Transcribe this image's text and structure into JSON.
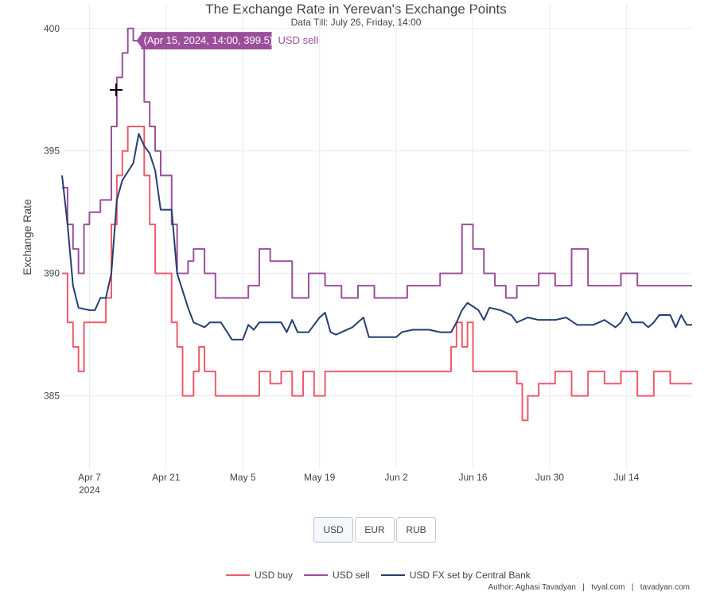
{
  "chart_data": {
    "type": "line",
    "title": "The Exchange Rate in Yerevan's Exchange Points",
    "subtitle": "Data Till: July 26, Friday, 14:00",
    "ylabel": "Exchange Rate",
    "xlabel": "",
    "ylim": [
      382.0,
      401.0
    ],
    "xlim": [
      "2024-04-02",
      "2024-07-26"
    ],
    "grid": true,
    "x_ticks": [
      {
        "date": "2024-04-07",
        "label": "Apr 7",
        "sub": "2024"
      },
      {
        "date": "2024-04-21",
        "label": "Apr 21",
        "sub": ""
      },
      {
        "date": "2024-05-05",
        "label": "May 5",
        "sub": ""
      },
      {
        "date": "2024-05-19",
        "label": "May 19",
        "sub": ""
      },
      {
        "date": "2024-06-02",
        "label": "Jun 2",
        "sub": ""
      },
      {
        "date": "2024-06-16",
        "label": "Jun 16",
        "sub": ""
      },
      {
        "date": "2024-06-30",
        "label": "Jun 30",
        "sub": ""
      },
      {
        "date": "2024-07-14",
        "label": "Jul 14",
        "sub": ""
      }
    ],
    "y_ticks": [
      385,
      390,
      395,
      400
    ],
    "series": [
      {
        "name": "USD buy",
        "color": "#ef5a6b",
        "points": [
          [
            "2024-04-02",
            390.0
          ],
          [
            "2024-04-03",
            388.0
          ],
          [
            "2024-04-04",
            387.0
          ],
          [
            "2024-04-05",
            386.0
          ],
          [
            "2024-04-06",
            388.0
          ],
          [
            "2024-04-07",
            388.0
          ],
          [
            "2024-04-08",
            388.0
          ],
          [
            "2024-04-09",
            388.0
          ],
          [
            "2024-04-10",
            389.0
          ],
          [
            "2024-04-11",
            392.0
          ],
          [
            "2024-04-12",
            394.0
          ],
          [
            "2024-04-13",
            395.0
          ],
          [
            "2024-04-14",
            396.0
          ],
          [
            "2024-04-15",
            396.0
          ],
          [
            "2024-04-16",
            396.0
          ],
          [
            "2024-04-17",
            394.0
          ],
          [
            "2024-04-18",
            392.0
          ],
          [
            "2024-04-19",
            390.0
          ],
          [
            "2024-04-20",
            390.0
          ],
          [
            "2024-04-21",
            390.0
          ],
          [
            "2024-04-22",
            388.0
          ],
          [
            "2024-04-23",
            387.0
          ],
          [
            "2024-04-24",
            385.0
          ],
          [
            "2024-04-25",
            385.0
          ],
          [
            "2024-04-26",
            386.0
          ],
          [
            "2024-04-27",
            387.0
          ],
          [
            "2024-04-28",
            386.0
          ],
          [
            "2024-04-29",
            386.0
          ],
          [
            "2024-04-30",
            385.0
          ],
          [
            "2024-05-02",
            385.0
          ],
          [
            "2024-05-04",
            385.0
          ],
          [
            "2024-05-06",
            385.0
          ],
          [
            "2024-05-08",
            386.0
          ],
          [
            "2024-05-10",
            385.5
          ],
          [
            "2024-05-12",
            386.0
          ],
          [
            "2024-05-14",
            385.0
          ],
          [
            "2024-05-16",
            386.0
          ],
          [
            "2024-05-18",
            385.0
          ],
          [
            "2024-05-20",
            386.0
          ],
          [
            "2024-05-25",
            386.0
          ],
          [
            "2024-05-30",
            386.0
          ],
          [
            "2024-06-05",
            386.0
          ],
          [
            "2024-06-10",
            386.0
          ],
          [
            "2024-06-12",
            387.0
          ],
          [
            "2024-06-13",
            388.0
          ],
          [
            "2024-06-14",
            387.0
          ],
          [
            "2024-06-15",
            388.0
          ],
          [
            "2024-06-16",
            386.0
          ],
          [
            "2024-06-18",
            386.0
          ],
          [
            "2024-06-20",
            386.0
          ],
          [
            "2024-06-22",
            386.0
          ],
          [
            "2024-06-24",
            385.5
          ],
          [
            "2024-06-25",
            384.0
          ],
          [
            "2024-06-26",
            385.0
          ],
          [
            "2024-06-28",
            385.5
          ],
          [
            "2024-07-01",
            386.0
          ],
          [
            "2024-07-04",
            385.0
          ],
          [
            "2024-07-07",
            386.0
          ],
          [
            "2024-07-10",
            385.5
          ],
          [
            "2024-07-13",
            386.0
          ],
          [
            "2024-07-16",
            385.0
          ],
          [
            "2024-07-19",
            386.0
          ],
          [
            "2024-07-22",
            385.5
          ],
          [
            "2024-07-26",
            385.5
          ]
        ]
      },
      {
        "name": "USD sell",
        "color": "#9b4f9b",
        "points": [
          [
            "2024-04-02",
            393.5
          ],
          [
            "2024-04-03",
            392.0
          ],
          [
            "2024-04-04",
            391.0
          ],
          [
            "2024-04-05",
            390.0
          ],
          [
            "2024-04-06",
            392.0
          ],
          [
            "2024-04-07",
            392.5
          ],
          [
            "2024-04-08",
            392.5
          ],
          [
            "2024-04-09",
            393.0
          ],
          [
            "2024-04-10",
            393.0
          ],
          [
            "2024-04-11",
            396.0
          ],
          [
            "2024-04-12",
            398.0
          ],
          [
            "2024-04-13",
            399.0
          ],
          [
            "2024-04-14",
            400.0
          ],
          [
            "2024-04-15",
            399.5
          ],
          [
            "2024-04-16",
            399.5
          ],
          [
            "2024-04-17",
            397.0
          ],
          [
            "2024-04-18",
            396.0
          ],
          [
            "2024-04-19",
            395.0
          ],
          [
            "2024-04-20",
            394.0
          ],
          [
            "2024-04-21",
            394.0
          ],
          [
            "2024-04-22",
            392.0
          ],
          [
            "2024-04-23",
            390.0
          ],
          [
            "2024-04-24",
            390.0
          ],
          [
            "2024-04-25",
            390.5
          ],
          [
            "2024-04-26",
            391.0
          ],
          [
            "2024-04-28",
            390.0
          ],
          [
            "2024-04-30",
            389.0
          ],
          [
            "2024-05-03",
            389.0
          ],
          [
            "2024-05-06",
            389.5
          ],
          [
            "2024-05-08",
            391.0
          ],
          [
            "2024-05-10",
            390.5
          ],
          [
            "2024-05-12",
            390.5
          ],
          [
            "2024-05-14",
            389.0
          ],
          [
            "2024-05-17",
            390.0
          ],
          [
            "2024-05-20",
            389.5
          ],
          [
            "2024-05-23",
            389.0
          ],
          [
            "2024-05-26",
            389.5
          ],
          [
            "2024-05-29",
            389.0
          ],
          [
            "2024-06-01",
            389.0
          ],
          [
            "2024-06-04",
            389.5
          ],
          [
            "2024-06-07",
            389.5
          ],
          [
            "2024-06-10",
            390.0
          ],
          [
            "2024-06-12",
            390.0
          ],
          [
            "2024-06-14",
            392.0
          ],
          [
            "2024-06-16",
            391.0
          ],
          [
            "2024-06-18",
            390.0
          ],
          [
            "2024-06-20",
            389.5
          ],
          [
            "2024-06-22",
            389.0
          ],
          [
            "2024-06-24",
            389.5
          ],
          [
            "2024-06-26",
            389.5
          ],
          [
            "2024-06-28",
            390.0
          ],
          [
            "2024-07-01",
            389.5
          ],
          [
            "2024-07-04",
            391.0
          ],
          [
            "2024-07-07",
            389.5
          ],
          [
            "2024-07-10",
            389.5
          ],
          [
            "2024-07-13",
            390.0
          ],
          [
            "2024-07-16",
            389.5
          ],
          [
            "2024-07-19",
            389.5
          ],
          [
            "2024-07-22",
            389.5
          ],
          [
            "2024-07-26",
            389.5
          ]
        ]
      },
      {
        "name": "USD FX set by Central Bank",
        "color": "#253f72",
        "points": [
          [
            "2024-04-02",
            394.0
          ],
          [
            "2024-04-03",
            392.0
          ],
          [
            "2024-04-04",
            389.5
          ],
          [
            "2024-04-05",
            388.6
          ],
          [
            "2024-04-07",
            388.5
          ],
          [
            "2024-04-08",
            388.5
          ],
          [
            "2024-04-09",
            389.0
          ],
          [
            "2024-04-10",
            389.0
          ],
          [
            "2024-04-11",
            390.0
          ],
          [
            "2024-04-12",
            393.0
          ],
          [
            "2024-04-13",
            393.8
          ],
          [
            "2024-04-15",
            394.5
          ],
          [
            "2024-04-16",
            395.7
          ],
          [
            "2024-04-17",
            395.2
          ],
          [
            "2024-04-18",
            394.9
          ],
          [
            "2024-04-19",
            394.2
          ],
          [
            "2024-04-20",
            392.6
          ],
          [
            "2024-04-22",
            392.6
          ],
          [
            "2024-04-23",
            390.0
          ],
          [
            "2024-04-25",
            388.6
          ],
          [
            "2024-04-26",
            388.0
          ],
          [
            "2024-04-28",
            387.8
          ],
          [
            "2024-04-29",
            388.0
          ],
          [
            "2024-05-01",
            388.0
          ],
          [
            "2024-05-03",
            387.3
          ],
          [
            "2024-05-05",
            387.3
          ],
          [
            "2024-05-06",
            387.9
          ],
          [
            "2024-05-07",
            387.7
          ],
          [
            "2024-05-08",
            388.0
          ],
          [
            "2024-05-10",
            388.0
          ],
          [
            "2024-05-12",
            388.0
          ],
          [
            "2024-05-13",
            387.6
          ],
          [
            "2024-05-14",
            388.1
          ],
          [
            "2024-05-15",
            387.6
          ],
          [
            "2024-05-17",
            387.6
          ],
          [
            "2024-05-19",
            388.2
          ],
          [
            "2024-05-20",
            388.4
          ],
          [
            "2024-05-21",
            387.6
          ],
          [
            "2024-05-22",
            387.5
          ],
          [
            "2024-05-25",
            387.8
          ],
          [
            "2024-05-27",
            388.2
          ],
          [
            "2024-05-28",
            387.4
          ],
          [
            "2024-05-31",
            387.4
          ],
          [
            "2024-06-02",
            387.4
          ],
          [
            "2024-06-03",
            387.6
          ],
          [
            "2024-06-05",
            387.7
          ],
          [
            "2024-06-08",
            387.7
          ],
          [
            "2024-06-10",
            387.6
          ],
          [
            "2024-06-12",
            387.6
          ],
          [
            "2024-06-13",
            388.0
          ],
          [
            "2024-06-14",
            388.5
          ],
          [
            "2024-06-15",
            388.8
          ],
          [
            "2024-06-17",
            388.5
          ],
          [
            "2024-06-18",
            388.1
          ],
          [
            "2024-06-19",
            388.6
          ],
          [
            "2024-06-21",
            388.5
          ],
          [
            "2024-06-23",
            388.3
          ],
          [
            "2024-06-24",
            388.0
          ],
          [
            "2024-06-26",
            388.2
          ],
          [
            "2024-06-28",
            388.1
          ],
          [
            "2024-07-01",
            388.1
          ],
          [
            "2024-07-03",
            388.2
          ],
          [
            "2024-07-05",
            387.9
          ],
          [
            "2024-07-08",
            387.9
          ],
          [
            "2024-07-10",
            388.1
          ],
          [
            "2024-07-12",
            387.8
          ],
          [
            "2024-07-13",
            388.0
          ],
          [
            "2024-07-14",
            388.4
          ],
          [
            "2024-07-15",
            388.0
          ],
          [
            "2024-07-17",
            388.0
          ],
          [
            "2024-07-18",
            387.8
          ],
          [
            "2024-07-19",
            388.0
          ],
          [
            "2024-07-20",
            388.3
          ],
          [
            "2024-07-22",
            388.3
          ],
          [
            "2024-07-23",
            387.8
          ],
          [
            "2024-07-24",
            388.3
          ],
          [
            "2024-07-25",
            387.9
          ],
          [
            "2024-07-26",
            387.9
          ]
        ]
      }
    ]
  },
  "tooltip": {
    "text": "(Apr 15, 2024, 14:00, 399.5)",
    "series_label": "USD sell",
    "date": "2024-04-15",
    "value": 399.5
  },
  "buttons": [
    {
      "label": "USD",
      "active": true
    },
    {
      "label": "EUR",
      "active": false
    },
    {
      "label": "RUB",
      "active": false
    }
  ],
  "credits": "Author: Aghasi Tavadyan   |   tvyal.com   |   tavadyan.com"
}
